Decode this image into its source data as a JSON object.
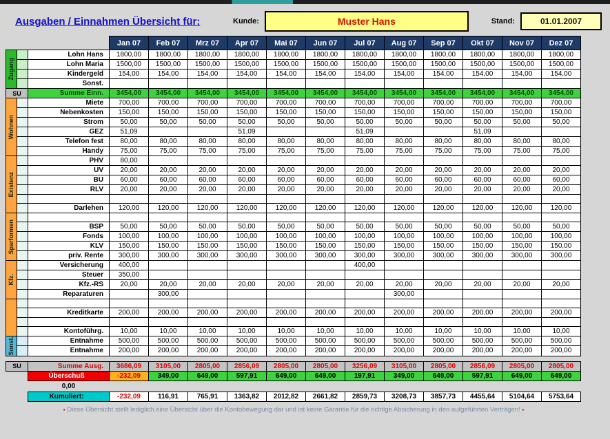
{
  "header": {
    "title": "Ausgaben / Einnahmen Übersicht für:",
    "kunde_label": "Kunde:",
    "kunde_value": "Muster Hans",
    "stand_label": "Stand:",
    "stand_value": "01.01.2007"
  },
  "colors": {
    "month_header_bg": "#1e3a66",
    "income_green": "#3fd23f",
    "expense_red": "#e00000",
    "negative_bg": "#ffb020",
    "kumuliert_cyan": "#00c9c9",
    "su_gray": "#bfbfbf",
    "kunde_box_yellow": "#ffff85",
    "stand_box_yellow": "#ffffb8"
  },
  "table": {
    "months": [
      "Jan 07",
      "Feb 07",
      "Mrz 07",
      "Apr 07",
      "Mai 07",
      "Jun 07",
      "Jul 07",
      "Aug 07",
      "Sep 07",
      "Okt 07",
      "Nov 07",
      "Dez 07"
    ],
    "su_label": "SU",
    "sections": {
      "zugang": {
        "label": "Zugang",
        "color": "#2db92d",
        "tint": "#c9f0c9"
      },
      "wohnen": {
        "label": "Wohnen",
        "color": "#ffa540",
        "tint": "#e9f5f2"
      },
      "existenz": {
        "label": "Existenz",
        "color": "#ffa540",
        "tint": "#e9f5f2"
      },
      "sparformen": {
        "label": "Sparformen",
        "color": "#ffa540",
        "tint": "#e9f5f2"
      },
      "kfz": {
        "label": "Kfz.",
        "color": "#ffa540",
        "tint": "#e9f5f2"
      },
      "misc": {
        "label": "",
        "color": "#ffa540",
        "tint": "#e9f5f2"
      },
      "sonst": {
        "label": "Sonst.",
        "color": "#55b8d9",
        "tint": "#d8eef7"
      }
    },
    "rows": [
      {
        "k": "d",
        "sec": "zugang",
        "label": "Lohn Hans",
        "v": [
          "1800,00",
          "1800,00",
          "1800,00",
          "1800,00",
          "1800,00",
          "1800,00",
          "1800,00",
          "1800,00",
          "1800,00",
          "1800,00",
          "1800,00",
          "1800,00"
        ]
      },
      {
        "k": "d",
        "sec": "zugang",
        "label": "Lohn Maria",
        "v": [
          "1500,00",
          "1500,00",
          "1500,00",
          "1500,00",
          "1500,00",
          "1500,00",
          "1500,00",
          "1500,00",
          "1500,00",
          "1500,00",
          "1500,00",
          "1500,00"
        ]
      },
      {
        "k": "d",
        "sec": "zugang",
        "label": "Kindergeld",
        "v": [
          "154,00",
          "154,00",
          "154,00",
          "154,00",
          "154,00",
          "154,00",
          "154,00",
          "154,00",
          "154,00",
          "154,00",
          "154,00",
          "154,00"
        ]
      },
      {
        "k": "d",
        "sec": "zugang",
        "label": "Sonst.",
        "v": [
          "",
          "",
          "",
          "",
          "",
          "",
          "",
          "",
          "",
          "",
          "",
          ""
        ]
      },
      {
        "k": "sin",
        "label": "Summe Einn.",
        "v": [
          "3454,00",
          "3454,00",
          "3454,00",
          "3454,00",
          "3454,00",
          "3454,00",
          "3454,00",
          "3454,00",
          "3454,00",
          "3454,00",
          "3454,00",
          "3454,00"
        ]
      },
      {
        "k": "d",
        "sec": "wohnen",
        "label": "Miete",
        "v": [
          "700,00",
          "700,00",
          "700,00",
          "700,00",
          "700,00",
          "700,00",
          "700,00",
          "700,00",
          "700,00",
          "700,00",
          "700,00",
          "700,00"
        ]
      },
      {
        "k": "d",
        "sec": "wohnen",
        "label": "Nebenkosten",
        "v": [
          "150,00",
          "150,00",
          "150,00",
          "150,00",
          "150,00",
          "150,00",
          "150,00",
          "150,00",
          "150,00",
          "150,00",
          "150,00",
          "150,00"
        ]
      },
      {
        "k": "d",
        "sec": "wohnen",
        "label": "Strom",
        "v": [
          "50,00",
          "50,00",
          "50,00",
          "50,00",
          "50,00",
          "50,00",
          "50,00",
          "50,00",
          "50,00",
          "50,00",
          "50,00",
          "50,00"
        ]
      },
      {
        "k": "d",
        "sec": "wohnen",
        "label": "GEZ",
        "v": [
          "51,09",
          "",
          "",
          "51,09",
          "",
          "",
          "51,09",
          "",
          "",
          "51,09",
          "",
          ""
        ]
      },
      {
        "k": "d",
        "sec": "wohnen",
        "label": "Telefon fest",
        "v": [
          "80,00",
          "80,00",
          "80,00",
          "80,00",
          "80,00",
          "80,00",
          "80,00",
          "80,00",
          "80,00",
          "80,00",
          "80,00",
          "80,00"
        ]
      },
      {
        "k": "d",
        "sec": "wohnen",
        "label": "Handy",
        "v": [
          "75,00",
          "75,00",
          "75,00",
          "75,00",
          "75,00",
          "75,00",
          "75,00",
          "75,00",
          "75,00",
          "75,00",
          "75,00",
          "75,00"
        ]
      },
      {
        "k": "d",
        "sec": "existenz",
        "label": "PHV",
        "v": [
          "80,00",
          "",
          "",
          "",
          "",
          "",
          "",
          "",
          "",
          "",
          "",
          ""
        ]
      },
      {
        "k": "d",
        "sec": "existenz",
        "label": "UV",
        "v": [
          "20,00",
          "20,00",
          "20,00",
          "20,00",
          "20,00",
          "20,00",
          "20,00",
          "20,00",
          "20,00",
          "20,00",
          "20,00",
          "20,00"
        ]
      },
      {
        "k": "d",
        "sec": "existenz",
        "label": "BU",
        "v": [
          "60,00",
          "60,00",
          "60,00",
          "60,00",
          "60,00",
          "60,00",
          "60,00",
          "60,00",
          "60,00",
          "60,00",
          "60,00",
          "60,00"
        ]
      },
      {
        "k": "d",
        "sec": "existenz",
        "label": "RLV",
        "v": [
          "20,00",
          "20,00",
          "20,00",
          "20,00",
          "20,00",
          "20,00",
          "20,00",
          "20,00",
          "20,00",
          "20,00",
          "20,00",
          "20,00"
        ]
      },
      {
        "k": "d",
        "sec": "existenz",
        "label": "",
        "v": [
          "",
          "",
          "",
          "",
          "",
          "",
          "",
          "",
          "",
          "",
          "",
          ""
        ]
      },
      {
        "k": "d",
        "sec": "existenz",
        "label": "Darlehen",
        "v": [
          "120,00",
          "120,00",
          "120,00",
          "120,00",
          "120,00",
          "120,00",
          "120,00",
          "120,00",
          "120,00",
          "120,00",
          "120,00",
          "120,00"
        ]
      },
      {
        "k": "d",
        "sec": "sparformen",
        "label": "",
        "v": [
          "",
          "",
          "",
          "",
          "",
          "",
          "",
          "",
          "",
          "",
          "",
          ""
        ]
      },
      {
        "k": "d",
        "sec": "sparformen",
        "label": "BSP",
        "v": [
          "50,00",
          "50,00",
          "50,00",
          "50,00",
          "50,00",
          "50,00",
          "50,00",
          "50,00",
          "50,00",
          "50,00",
          "50,00",
          "50,00"
        ]
      },
      {
        "k": "d",
        "sec": "sparformen",
        "label": "Fonds",
        "v": [
          "100,00",
          "100,00",
          "100,00",
          "100,00",
          "100,00",
          "100,00",
          "100,00",
          "100,00",
          "100,00",
          "100,00",
          "100,00",
          "100,00"
        ]
      },
      {
        "k": "d",
        "sec": "sparformen",
        "label": "KLV",
        "v": [
          "150,00",
          "150,00",
          "150,00",
          "150,00",
          "150,00",
          "150,00",
          "150,00",
          "150,00",
          "150,00",
          "150,00",
          "150,00",
          "150,00"
        ]
      },
      {
        "k": "d",
        "sec": "sparformen",
        "label": "priv. Rente",
        "v": [
          "300,00",
          "300,00",
          "300,00",
          "300,00",
          "300,00",
          "300,00",
          "300,00",
          "300,00",
          "300,00",
          "300,00",
          "300,00",
          "300,00"
        ]
      },
      {
        "k": "d",
        "sec": "kfz",
        "label": "Versicherung",
        "v": [
          "400,00",
          "",
          "",
          "",
          "",
          "",
          "400,00",
          "",
          "",
          "",
          "",
          ""
        ]
      },
      {
        "k": "d",
        "sec": "kfz",
        "label": "Steuer",
        "v": [
          "350,00",
          "",
          "",
          "",
          "",
          "",
          "",
          "",
          "",
          "",
          "",
          ""
        ]
      },
      {
        "k": "d",
        "sec": "kfz",
        "label": "Kfz.-RS",
        "v": [
          "20,00",
          "20,00",
          "20,00",
          "20,00",
          "20,00",
          "20,00",
          "20,00",
          "20,00",
          "20,00",
          "20,00",
          "20,00",
          "20,00"
        ]
      },
      {
        "k": "d",
        "sec": "kfz",
        "label": "Reparaturen",
        "v": [
          "",
          "300,00",
          "",
          "",
          "",
          "",
          "",
          "300,00",
          "",
          "",
          "",
          ""
        ]
      },
      {
        "k": "d",
        "sec": "misc",
        "label": "",
        "v": [
          "",
          "",
          "",
          "",
          "",
          "",
          "",
          "",
          "",
          "",
          "",
          ""
        ]
      },
      {
        "k": "d",
        "sec": "misc",
        "label": "Kreditkarte",
        "v": [
          "200,00",
          "200,00",
          "200,00",
          "200,00",
          "200,00",
          "200,00",
          "200,00",
          "200,00",
          "200,00",
          "200,00",
          "200,00",
          "200,00"
        ]
      },
      {
        "k": "d",
        "sec": "misc",
        "label": "",
        "v": [
          "",
          "",
          "",
          "",
          "",
          "",
          "",
          "",
          "",
          "",
          "",
          ""
        ]
      },
      {
        "k": "d",
        "sec": "misc",
        "label": "Kontoführg.",
        "v": [
          "10,00",
          "10,00",
          "10,00",
          "10,00",
          "10,00",
          "10,00",
          "10,00",
          "10,00",
          "10,00",
          "10,00",
          "10,00",
          "10,00"
        ]
      },
      {
        "k": "d",
        "sec": "sonst",
        "label": "Entnahme",
        "v": [
          "500,00",
          "500,00",
          "500,00",
          "500,00",
          "500,00",
          "500,00",
          "500,00",
          "500,00",
          "500,00",
          "500,00",
          "500,00",
          "500,00"
        ]
      },
      {
        "k": "d",
        "sec": "sonst",
        "label": "Entnahme",
        "v": [
          "200,00",
          "200,00",
          "200,00",
          "200,00",
          "200,00",
          "200,00",
          "200,00",
          "200,00",
          "200,00",
          "200,00",
          "200,00",
          "200,00"
        ]
      },
      {
        "k": "sp"
      },
      {
        "k": "sout",
        "label": "Summe Ausg.",
        "v": [
          "3686,09",
          "3105,00",
          "2805,00",
          "2856,09",
          "2805,00",
          "2805,00",
          "3256,09",
          "3105,00",
          "2805,00",
          "2856,09",
          "2805,00",
          "2805,00"
        ]
      },
      {
        "k": "ueb",
        "label": "Überschuß",
        "v": [
          "-232,09",
          "349,00",
          "649,00",
          "597,91",
          "649,00",
          "649,00",
          "197,91",
          "349,00",
          "649,00",
          "597,91",
          "649,00",
          "649,00"
        ]
      },
      {
        "k": "zero",
        "label": "0,00"
      },
      {
        "k": "kum",
        "label": "Kumuliert:",
        "v": [
          "-232,09",
          "116,91",
          "765,91",
          "1363,82",
          "2012,82",
          "2661,82",
          "2859,73",
          "3208,73",
          "3857,73",
          "4455,64",
          "5104,64",
          "5753,64"
        ]
      }
    ]
  },
  "footer": {
    "note": "Diese Übersicht stellt lediglich eine Übersicht über die Kontobewegung dar und ist keine Garantie für die richtige Absicherung in den aufgeführten Verträgen!"
  }
}
